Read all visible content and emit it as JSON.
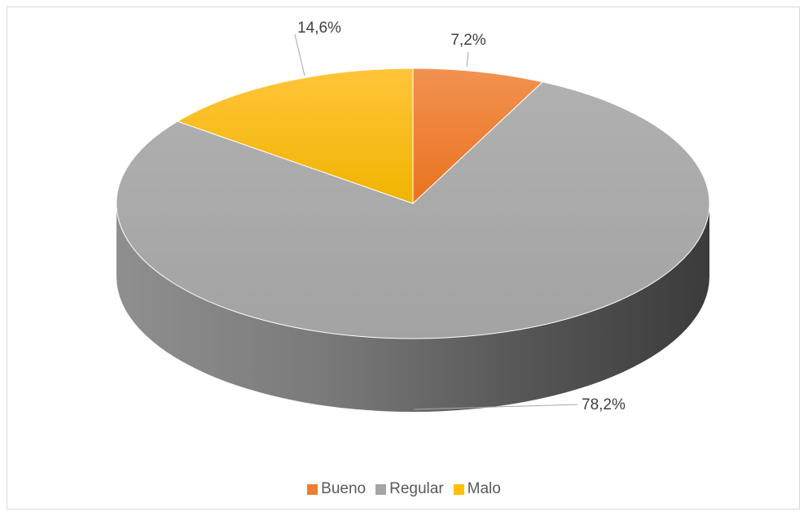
{
  "chart_data": {
    "type": "pie",
    "variant": "3d",
    "categories": [
      "Bueno",
      "Regular",
      "Malo"
    ],
    "values": [
      7.2,
      78.2,
      14.6
    ],
    "data_labels": [
      "7,2%",
      "78,2%",
      "14,6%"
    ],
    "colors": [
      "#ed7d31",
      "#a5a5a5",
      "#ffc000"
    ],
    "legend_position": "bottom",
    "title": ""
  },
  "legend": {
    "items": [
      {
        "label": "Bueno",
        "color": "#ed7d31"
      },
      {
        "label": "Regular",
        "color": "#a5a5a5"
      },
      {
        "label": "Malo",
        "color": "#ffc000"
      }
    ]
  }
}
